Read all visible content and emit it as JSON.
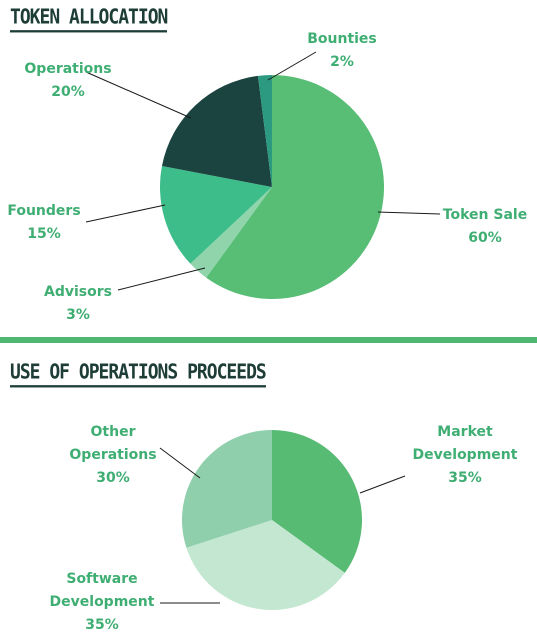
{
  "chart_data": [
    {
      "type": "pie",
      "title": "TOKEN ALLOCATION",
      "slices": [
        {
          "label": "Token Sale",
          "value": 60,
          "display": "60%",
          "color": "#58bd75"
        },
        {
          "label": "Advisors",
          "value": 3,
          "display": "3%",
          "color": "#8fd4ab"
        },
        {
          "label": "Founders",
          "value": 15,
          "display": "15%",
          "color": "#3dbd8a"
        },
        {
          "label": "Operations",
          "value": 20,
          "display": "20%",
          "color": "#1b4440"
        },
        {
          "label": "Bounties",
          "value": 2,
          "display": "2%",
          "color": "#2b9a80"
        }
      ]
    },
    {
      "type": "pie",
      "title": "USE OF OPERATIONS PROCEEDS",
      "slices": [
        {
          "label": "Market Development",
          "value": 35,
          "display": "35%",
          "color": "#57bb73"
        },
        {
          "label": "Software Development",
          "value": 35,
          "display": "35%",
          "color": "#c3e7d1"
        },
        {
          "label": "Other Operations",
          "value": 30,
          "display": "30%",
          "color": "#8fcfac"
        }
      ]
    }
  ]
}
